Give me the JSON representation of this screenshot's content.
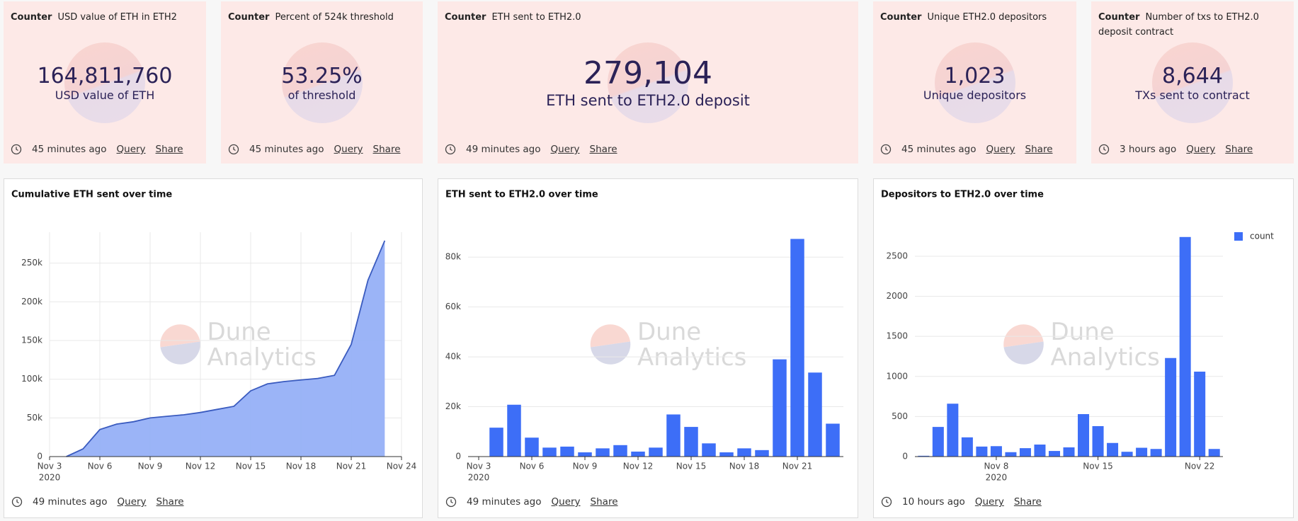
{
  "counters": [
    {
      "kind": "Counter",
      "name": "USD value of ETH in ETH2",
      "value": "164,811,760",
      "label": "USD value of ETH",
      "time": "45 minutes ago",
      "links": [
        "Query",
        "Share"
      ]
    },
    {
      "kind": "Counter",
      "name": "Percent of 524k threshold",
      "value": "53.25%",
      "label": "of threshold",
      "time": "45 minutes ago",
      "links": [
        "Query",
        "Share"
      ]
    },
    {
      "kind": "Counter",
      "name": "ETH sent to ETH2.0",
      "value": "279,104",
      "label": "ETH sent to ETH2.0 deposit",
      "time": "49 minutes ago",
      "links": [
        "Query",
        "Share"
      ]
    },
    {
      "kind": "Counter",
      "name": "Unique ETH2.0 depositors",
      "value": "1,023",
      "label": "Unique depositors",
      "time": "45 minutes ago",
      "links": [
        "Query",
        "Share"
      ]
    },
    {
      "kind": "Counter",
      "name": "Number of txs to ETH2.0 deposit contract",
      "value": "8,644",
      "label": "TXs sent to contract",
      "time": "3 hours ago",
      "links": [
        "Query",
        "Share"
      ]
    }
  ],
  "watermark": [
    "Dune",
    "Analytics"
  ],
  "chart_data": [
    {
      "type": "area",
      "title": "Cumulative ETH sent over time",
      "color": "#96b0f7",
      "line_color": "#3a5bbf",
      "x": [
        "2020-11-04",
        "2020-11-05",
        "2020-11-06",
        "2020-11-07",
        "2020-11-08",
        "2020-11-09",
        "2020-11-10",
        "2020-11-11",
        "2020-11-12",
        "2020-11-13",
        "2020-11-14",
        "2020-11-15",
        "2020-11-16",
        "2020-11-17",
        "2020-11-18",
        "2020-11-19",
        "2020-11-20",
        "2020-11-21",
        "2020-11-22",
        "2020-11-23"
      ],
      "values": [
        0,
        10000,
        35000,
        42000,
        45000,
        50000,
        52000,
        54000,
        57000,
        61000,
        65000,
        85000,
        94000,
        97000,
        99000,
        101000,
        105000,
        145000,
        228000,
        279000
      ],
      "xlim": [
        "2020-11-03",
        "2020-11-24"
      ],
      "xticks": [
        {
          "value": "2020-11-03",
          "label": "Nov 3",
          "year": "2020"
        },
        {
          "value": "2020-11-06",
          "label": "Nov 6"
        },
        {
          "value": "2020-11-09",
          "label": "Nov 9"
        },
        {
          "value": "2020-11-12",
          "label": "Nov 12"
        },
        {
          "value": "2020-11-15",
          "label": "Nov 15"
        },
        {
          "value": "2020-11-18",
          "label": "Nov 18"
        },
        {
          "value": "2020-11-21",
          "label": "Nov 21"
        },
        {
          "value": "2020-11-24",
          "label": "Nov 24"
        }
      ],
      "ylim": [
        0,
        290000
      ],
      "yticks": [
        0,
        {
          "value": 50000,
          "label": "50k"
        },
        {
          "value": 100000,
          "label": "100k"
        },
        {
          "value": 150000,
          "label": "150k"
        },
        {
          "value": 200000,
          "label": "200k"
        },
        {
          "value": 250000,
          "label": "250k"
        }
      ],
      "grid": [
        "x",
        "y"
      ],
      "time": "49 minutes ago",
      "links": [
        "Query",
        "Share"
      ]
    },
    {
      "type": "bar",
      "title": "ETH sent to ETH2.0 over time",
      "color": "#3d6ef7",
      "x": [
        "2020-11-04",
        "2020-11-05",
        "2020-11-06",
        "2020-11-07",
        "2020-11-08",
        "2020-11-09",
        "2020-11-10",
        "2020-11-11",
        "2020-11-12",
        "2020-11-13",
        "2020-11-14",
        "2020-11-15",
        "2020-11-16",
        "2020-11-17",
        "2020-11-18",
        "2020-11-19",
        "2020-11-20",
        "2020-11-21",
        "2020-11-22",
        "2020-11-23"
      ],
      "values": [
        11600,
        20800,
        7600,
        3600,
        4000,
        1700,
        3300,
        4600,
        2000,
        3600,
        16900,
        11900,
        5300,
        1700,
        3300,
        2600,
        39000,
        87300,
        33700,
        13200
      ],
      "xlim": [
        "2020-11-03",
        "2020-11-23"
      ],
      "xticks": [
        {
          "value": "2020-11-03",
          "label": "Nov 3",
          "year": "2020"
        },
        {
          "value": "2020-11-06",
          "label": "Nov 6"
        },
        {
          "value": "2020-11-09",
          "label": "Nov 9"
        },
        {
          "value": "2020-11-12",
          "label": "Nov 12"
        },
        {
          "value": "2020-11-15",
          "label": "Nov 15"
        },
        {
          "value": "2020-11-18",
          "label": "Nov 18"
        },
        {
          "value": "2020-11-21",
          "label": "Nov 21"
        }
      ],
      "ylim": [
        0,
        90000
      ],
      "yticks": [
        0,
        {
          "value": 20000,
          "label": "20k"
        },
        {
          "value": 40000,
          "label": "40k"
        },
        {
          "value": 60000,
          "label": "60k"
        },
        {
          "value": 80000,
          "label": "80k"
        }
      ],
      "grid": [
        "y"
      ],
      "time": "49 minutes ago",
      "links": [
        "Query",
        "Share"
      ]
    },
    {
      "type": "bar",
      "title": "Depositors to ETH2.0 over time",
      "x": [
        "2020-11-03",
        "2020-11-04",
        "2020-11-05",
        "2020-11-06",
        "2020-11-07",
        "2020-11-08",
        "2020-11-09",
        "2020-11-10",
        "2020-11-11",
        "2020-11-12",
        "2020-11-13",
        "2020-11-14",
        "2020-11-15",
        "2020-11-16",
        "2020-11-17",
        "2020-11-18",
        "2020-11-19",
        "2020-11-20",
        "2020-11-21",
        "2020-11-22",
        "2020-11-23"
      ],
      "series": [
        {
          "name": "count",
          "color": "#3d6ef7",
          "values": [
            10,
            370,
            660,
            240,
            125,
            130,
            55,
            105,
            150,
            70,
            115,
            530,
            380,
            170,
            60,
            110,
            95,
            1230,
            2740,
            1060,
            95
          ]
        }
      ],
      "xlim": [
        "2020-11-03",
        "2020-11-23"
      ],
      "xticks": [
        {
          "value": "2020-11-08",
          "label": "Nov 8",
          "year": "2020"
        },
        {
          "value": "2020-11-15",
          "label": "Nov 15"
        },
        {
          "value": "2020-11-22",
          "label": "Nov 22"
        }
      ],
      "ylim": [
        0,
        2800
      ],
      "yticks": [
        0,
        500,
        1000,
        1500,
        2000,
        2500
      ],
      "grid": [
        "y"
      ],
      "legend": "top-right",
      "time": "10 hours ago",
      "links": [
        "Query",
        "Share"
      ]
    }
  ]
}
